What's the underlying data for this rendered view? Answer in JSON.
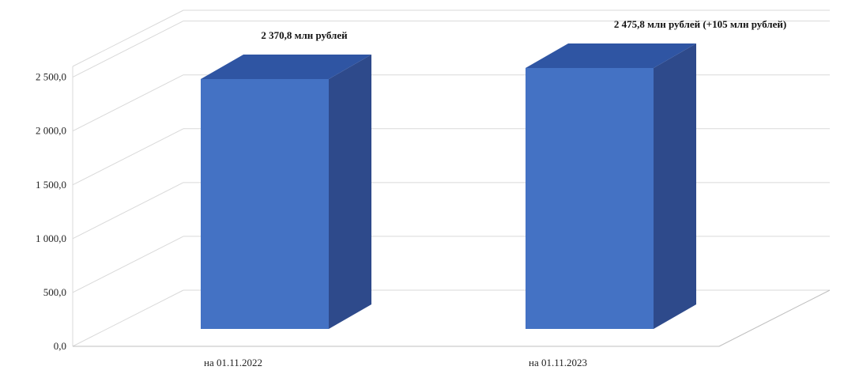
{
  "chart_data": {
    "type": "bar",
    "categories": [
      "на 01.11.2022",
      "на 01.11.2023"
    ],
    "values": [
      2370.8,
      2475.8
    ],
    "data_labels": [
      "2 370,8 млн рублей",
      "2 475,8 млн рублей (+105 млн рублей)"
    ],
    "yticks": [
      "0,0",
      "500,0",
      "1 000,0",
      "1 500,0",
      "2 000,0",
      "2 500,0"
    ],
    "ylim": [
      0,
      2500
    ],
    "grid": true,
    "style_3d": true,
    "legend": "none"
  },
  "colors": {
    "bar_front": "#4472C4",
    "bar_side": "#2E4A8B",
    "bar_top": "#2F55A3",
    "grid": "#D9D9D9",
    "axis": "#BFBFBF"
  }
}
